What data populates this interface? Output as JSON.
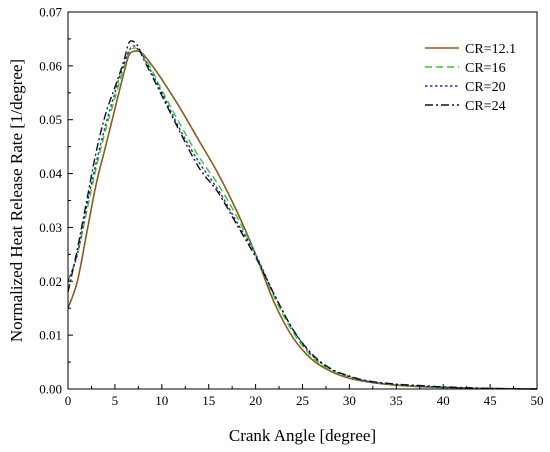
{
  "chart_data": {
    "type": "line",
    "xlabel": "Crank Angle [degree]",
    "ylabel": "Normalized Heat Release Rate [1/degree]",
    "xlim": [
      0,
      50
    ],
    "ylim": [
      0,
      0.07
    ],
    "xticks": [
      0,
      5,
      10,
      15,
      20,
      25,
      30,
      35,
      40,
      45,
      50
    ],
    "yticks": [
      0.0,
      0.01,
      0.02,
      0.03,
      0.04,
      0.05,
      0.06,
      0.07
    ],
    "ytick_labels": [
      "0.00",
      "0.01",
      "0.02",
      "0.03",
      "0.04",
      "0.05",
      "0.06",
      "0.07"
    ],
    "grid": false,
    "legend_position": "top-right",
    "series": [
      {
        "name": "CR=12.1",
        "color": "#8B5A1E",
        "dash": "solid",
        "x": [
          0,
          1,
          2,
          3,
          4,
          5,
          6,
          6.5,
          7,
          7.5,
          8,
          9,
          10,
          12,
          14,
          16,
          18,
          20,
          22,
          24,
          26,
          28,
          30,
          32,
          35,
          38,
          40,
          45,
          50
        ],
        "y": [
          0.015,
          0.02,
          0.029,
          0.038,
          0.045,
          0.052,
          0.059,
          0.062,
          0.0627,
          0.0627,
          0.0622,
          0.06,
          0.0575,
          0.052,
          0.046,
          0.04,
          0.033,
          0.025,
          0.016,
          0.0095,
          0.0055,
          0.0033,
          0.002,
          0.0013,
          0.0007,
          0.0004,
          0.0003,
          0.0001,
          0.0
        ]
      },
      {
        "name": "CR=16",
        "color": "#33CC33",
        "dash": "dash",
        "x": [
          0,
          1,
          2,
          3,
          4,
          5,
          5.5,
          6,
          6.5,
          7,
          7.5,
          8,
          9,
          10,
          12,
          14,
          16,
          18,
          20,
          22,
          24,
          26,
          28,
          30,
          32,
          35,
          38,
          40,
          45,
          50
        ],
        "y": [
          0.02,
          0.025,
          0.033,
          0.041,
          0.048,
          0.054,
          0.057,
          0.06,
          0.0625,
          0.0633,
          0.063,
          0.062,
          0.059,
          0.0555,
          0.049,
          0.043,
          0.038,
          0.032,
          0.025,
          0.017,
          0.0105,
          0.006,
          0.0035,
          0.0022,
          0.0014,
          0.0008,
          0.0005,
          0.0003,
          0.0001,
          0.0
        ]
      },
      {
        "name": "CR=20",
        "color": "#1F2FAA",
        "dash": "dot",
        "x": [
          0,
          1,
          2,
          3,
          4,
          5,
          5.5,
          6,
          6.5,
          7,
          7.5,
          8,
          9,
          10,
          12,
          14,
          16,
          18,
          20,
          22,
          24,
          26,
          28,
          30,
          32,
          35,
          38,
          40,
          45,
          50
        ],
        "y": [
          0.02,
          0.025,
          0.034,
          0.042,
          0.049,
          0.055,
          0.058,
          0.0605,
          0.0628,
          0.0637,
          0.063,
          0.0618,
          0.0585,
          0.055,
          0.048,
          0.042,
          0.037,
          0.031,
          0.025,
          0.0175,
          0.011,
          0.0063,
          0.0037,
          0.0023,
          0.0014,
          0.0008,
          0.0005,
          0.0003,
          0.0001,
          0.0
        ]
      },
      {
        "name": "CR=24",
        "color": "#111111",
        "dash": "dashdot",
        "x": [
          0,
          1,
          2,
          3,
          4,
          5,
          5.5,
          6,
          6.5,
          7,
          7.5,
          8,
          9,
          10,
          12,
          14,
          16,
          18,
          20,
          22,
          24,
          26,
          28,
          30,
          32,
          35,
          38,
          40,
          45,
          50
        ],
        "y": [
          0.018,
          0.026,
          0.035,
          0.044,
          0.051,
          0.056,
          0.0585,
          0.0612,
          0.0643,
          0.0645,
          0.0635,
          0.0615,
          0.058,
          0.0545,
          0.0475,
          0.041,
          0.0365,
          0.0305,
          0.0245,
          0.0175,
          0.011,
          0.0065,
          0.0038,
          0.0024,
          0.0015,
          0.0009,
          0.0006,
          0.0004,
          0.0001,
          0.0
        ]
      }
    ]
  }
}
